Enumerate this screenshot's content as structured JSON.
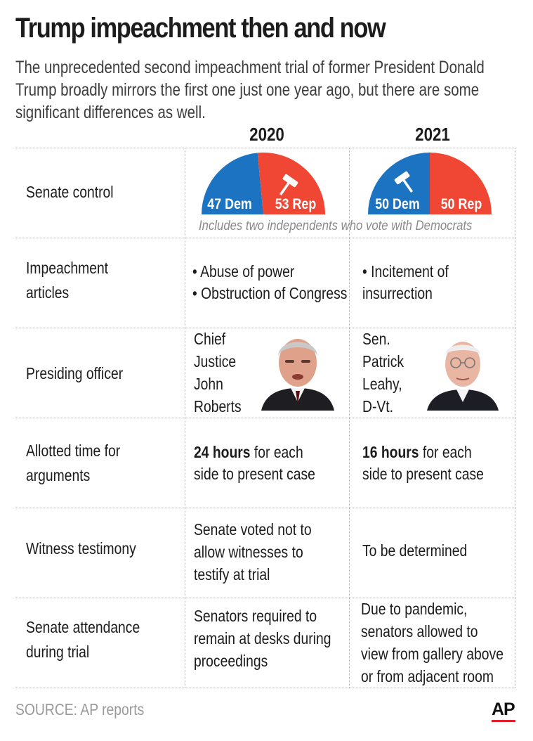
{
  "title": "Trump impeachment then and now",
  "subtitle": "The unprecedented second impeachment trial of former President Donald Trump broadly mirrors the first one just one year ago, but there are some significant differences as well.",
  "colors": {
    "dem": "#1b73c2",
    "rep": "#ef4733",
    "rule": "#b5b5b5"
  },
  "years": [
    "2020",
    "2021"
  ],
  "senate_control": {
    "label": "Senate control",
    "y2020": {
      "dem": "47 Dem",
      "rep": "53 Rep",
      "dem_seats": 47,
      "rep_seats": 53,
      "gavel": "gavel-icon"
    },
    "y2021": {
      "dem": "50 Dem",
      "rep": "50 Rep",
      "dem_seats": 50,
      "rep_seats": 50,
      "gavel": "gavel-icon"
    },
    "note": "Includes two independents who vote with Democrats"
  },
  "articles": {
    "label_1": "Impeachment",
    "label_2": "articles",
    "y2020_1": "• Abuse of power",
    "y2020_2": "• Obstruction of Congress",
    "y2021_1": "• Incitement of",
    "y2021_2": "insurrection"
  },
  "presiding": {
    "label": "Presiding officer",
    "y2020": [
      "Chief",
      "Justice",
      "John",
      "Roberts"
    ],
    "y2021": [
      "Sen.",
      "Patrick",
      "Leahy,",
      "D-Vt."
    ]
  },
  "time": {
    "label_1": "Allotted time for",
    "label_2": "arguments",
    "y2020_bold": "24 hours",
    "y2020_rest": " for each",
    "y2020_2": "side to present case",
    "y2021_bold": "16 hours",
    "y2021_rest": " for each",
    "y2021_2": "side to present case"
  },
  "witness": {
    "label": "Witness testimony",
    "y2020": [
      "Senate voted not to",
      "allow witnesses to",
      "testify at trial"
    ],
    "y2021": "To be determined"
  },
  "attendance": {
    "label_1": "Senate attendance",
    "label_2": "during trial",
    "y2020": [
      "Senators required to",
      "remain at desks during",
      "proceedings"
    ],
    "y2021": [
      "Due to pandemic,",
      "senators allowed to",
      "view from gallery above",
      "or from adjacent room"
    ]
  },
  "source": "SOURCE: AP reports",
  "logo": "AP"
}
